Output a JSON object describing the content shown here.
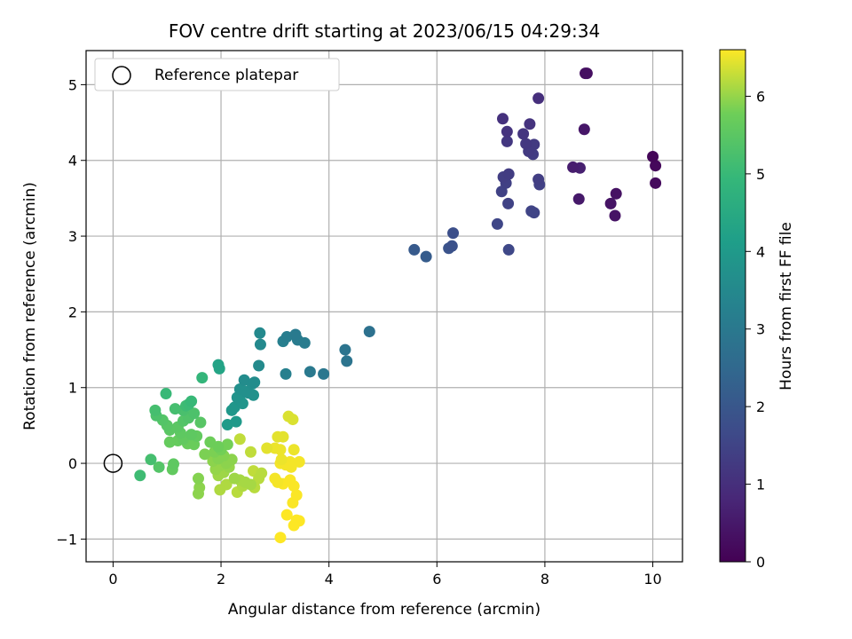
{
  "chart_data": {
    "type": "scatter",
    "title": "FOV centre drift starting at 2023/06/15 04:29:34",
    "xlabel": "Angular distance from reference (arcmin)",
    "ylabel": "Rotation from reference (arcmin)",
    "xlim": [
      -0.5,
      10.55
    ],
    "ylim": [
      -1.3,
      5.45
    ],
    "xticks": [
      0,
      2,
      4,
      6,
      8,
      10
    ],
    "yticks": [
      -1,
      0,
      1,
      2,
      3,
      4,
      5
    ],
    "grid": true,
    "legend": {
      "location": "upper-left",
      "entries": [
        "Reference platepar"
      ]
    },
    "reference_point": {
      "x": 0,
      "y": 0,
      "label": "Reference platepar"
    },
    "colorbar": {
      "label": "Hours from first FF file",
      "range": [
        0,
        6.6
      ],
      "ticks": [
        0,
        1,
        2,
        3,
        4,
        5,
        6
      ],
      "colormap": "viridis"
    },
    "points": [
      {
        "x": 10.0,
        "y": 4.05,
        "c": 0.1
      },
      {
        "x": 10.05,
        "y": 3.93,
        "c": 0.15
      },
      {
        "x": 10.05,
        "y": 3.7,
        "c": 0.2
      },
      {
        "x": 8.75,
        "y": 5.15,
        "c": 0.3
      },
      {
        "x": 8.78,
        "y": 5.15,
        "c": 0.32
      },
      {
        "x": 9.32,
        "y": 3.56,
        "c": 0.35
      },
      {
        "x": 9.3,
        "y": 3.27,
        "c": 0.38
      },
      {
        "x": 9.22,
        "y": 3.43,
        "c": 0.4
      },
      {
        "x": 8.73,
        "y": 4.41,
        "c": 0.45
      },
      {
        "x": 8.63,
        "y": 3.49,
        "c": 0.5
      },
      {
        "x": 8.52,
        "y": 3.91,
        "c": 0.6
      },
      {
        "x": 8.65,
        "y": 3.9,
        "c": 0.65
      },
      {
        "x": 7.88,
        "y": 4.82,
        "c": 1.0
      },
      {
        "x": 7.22,
        "y": 4.55,
        "c": 1.05
      },
      {
        "x": 7.72,
        "y": 4.48,
        "c": 1.1
      },
      {
        "x": 7.3,
        "y": 4.38,
        "c": 1.1
      },
      {
        "x": 7.6,
        "y": 4.35,
        "c": 1.15
      },
      {
        "x": 7.3,
        "y": 4.25,
        "c": 1.2
      },
      {
        "x": 7.65,
        "y": 4.22,
        "c": 1.2
      },
      {
        "x": 7.8,
        "y": 4.21,
        "c": 1.25
      },
      {
        "x": 7.7,
        "y": 4.12,
        "c": 1.25
      },
      {
        "x": 7.78,
        "y": 4.08,
        "c": 1.3
      },
      {
        "x": 7.33,
        "y": 3.82,
        "c": 1.3
      },
      {
        "x": 7.23,
        "y": 3.78,
        "c": 1.35
      },
      {
        "x": 7.88,
        "y": 3.75,
        "c": 1.35
      },
      {
        "x": 7.28,
        "y": 3.7,
        "c": 1.4
      },
      {
        "x": 7.9,
        "y": 3.68,
        "c": 1.4
      },
      {
        "x": 7.2,
        "y": 3.59,
        "c": 1.45
      },
      {
        "x": 7.32,
        "y": 3.43,
        "c": 1.45
      },
      {
        "x": 7.75,
        "y": 3.33,
        "c": 1.5
      },
      {
        "x": 7.8,
        "y": 3.31,
        "c": 1.5
      },
      {
        "x": 7.12,
        "y": 3.16,
        "c": 1.55
      },
      {
        "x": 6.3,
        "y": 3.04,
        "c": 1.8
      },
      {
        "x": 6.28,
        "y": 2.87,
        "c": 1.85
      },
      {
        "x": 6.22,
        "y": 2.84,
        "c": 1.9
      },
      {
        "x": 7.33,
        "y": 2.82,
        "c": 1.6
      },
      {
        "x": 5.58,
        "y": 2.82,
        "c": 2.1
      },
      {
        "x": 5.8,
        "y": 2.73,
        "c": 2.15
      },
      {
        "x": 4.75,
        "y": 1.74,
        "c": 2.75
      },
      {
        "x": 4.3,
        "y": 1.5,
        "c": 2.85
      },
      {
        "x": 4.33,
        "y": 1.35,
        "c": 2.85
      },
      {
        "x": 3.9,
        "y": 1.18,
        "c": 2.95
      },
      {
        "x": 3.65,
        "y": 1.21,
        "c": 3.0
      },
      {
        "x": 3.38,
        "y": 1.7,
        "c": 3.05
      },
      {
        "x": 3.42,
        "y": 1.63,
        "c": 3.1
      },
      {
        "x": 3.55,
        "y": 1.59,
        "c": 3.1
      },
      {
        "x": 3.22,
        "y": 1.67,
        "c": 3.15
      },
      {
        "x": 3.15,
        "y": 1.61,
        "c": 3.2
      },
      {
        "x": 3.2,
        "y": 1.18,
        "c": 3.25
      },
      {
        "x": 2.72,
        "y": 1.72,
        "c": 3.5
      },
      {
        "x": 2.73,
        "y": 1.57,
        "c": 3.5
      },
      {
        "x": 2.7,
        "y": 1.29,
        "c": 3.55
      },
      {
        "x": 2.43,
        "y": 1.1,
        "c": 3.6
      },
      {
        "x": 2.62,
        "y": 1.07,
        "c": 3.6
      },
      {
        "x": 2.58,
        "y": 1.05,
        "c": 3.65
      },
      {
        "x": 2.35,
        "y": 0.98,
        "c": 3.7
      },
      {
        "x": 2.45,
        "y": 0.95,
        "c": 3.7
      },
      {
        "x": 2.5,
        "y": 0.93,
        "c": 3.7
      },
      {
        "x": 2.6,
        "y": 0.9,
        "c": 3.75
      },
      {
        "x": 2.3,
        "y": 0.87,
        "c": 3.8
      },
      {
        "x": 2.35,
        "y": 0.83,
        "c": 3.85
      },
      {
        "x": 2.4,
        "y": 0.79,
        "c": 3.85
      },
      {
        "x": 2.25,
        "y": 0.74,
        "c": 3.9
      },
      {
        "x": 2.2,
        "y": 0.7,
        "c": 3.95
      },
      {
        "x": 2.28,
        "y": 0.55,
        "c": 4.0
      },
      {
        "x": 2.12,
        "y": 0.51,
        "c": 4.05
      },
      {
        "x": 1.95,
        "y": 1.3,
        "c": 4.3
      },
      {
        "x": 1.97,
        "y": 1.25,
        "c": 4.35
      },
      {
        "x": 1.65,
        "y": 1.13,
        "c": 4.9
      },
      {
        "x": 0.98,
        "y": 0.92,
        "c": 5.0
      },
      {
        "x": 1.45,
        "y": 0.82,
        "c": 5.0
      },
      {
        "x": 1.4,
        "y": 0.78,
        "c": 5.05
      },
      {
        "x": 1.35,
        "y": 0.76,
        "c": 5.1
      },
      {
        "x": 1.15,
        "y": 0.72,
        "c": 5.2
      },
      {
        "x": 0.78,
        "y": 0.7,
        "c": 5.2
      },
      {
        "x": 1.3,
        "y": 0.7,
        "c": 5.25
      },
      {
        "x": 1.5,
        "y": 0.66,
        "c": 5.3
      },
      {
        "x": 0.8,
        "y": 0.63,
        "c": 5.3
      },
      {
        "x": 1.4,
        "y": 0.6,
        "c": 5.35
      },
      {
        "x": 0.92,
        "y": 0.57,
        "c": 5.4
      },
      {
        "x": 1.3,
        "y": 0.56,
        "c": 5.4
      },
      {
        "x": 1.62,
        "y": 0.54,
        "c": 5.45
      },
      {
        "x": 1.0,
        "y": 0.5,
        "c": 5.45
      },
      {
        "x": 1.2,
        "y": 0.48,
        "c": 5.5
      },
      {
        "x": 1.05,
        "y": 0.44,
        "c": 5.5
      },
      {
        "x": 1.25,
        "y": 0.4,
        "c": 5.55
      },
      {
        "x": 1.45,
        "y": 0.38,
        "c": 5.55
      },
      {
        "x": 1.55,
        "y": 0.36,
        "c": 5.6
      },
      {
        "x": 1.3,
        "y": 0.32,
        "c": 5.6
      },
      {
        "x": 1.2,
        "y": 0.3,
        "c": 5.65
      },
      {
        "x": 1.05,
        "y": 0.28,
        "c": 5.65
      },
      {
        "x": 1.38,
        "y": 0.26,
        "c": 5.7
      },
      {
        "x": 1.5,
        "y": 0.25,
        "c": 5.7
      },
      {
        "x": 1.8,
        "y": 0.28,
        "c": 5.75
      },
      {
        "x": 1.95,
        "y": 0.22,
        "c": 5.75
      },
      {
        "x": 2.12,
        "y": 0.25,
        "c": 5.8
      },
      {
        "x": 2.0,
        "y": 0.18,
        "c": 5.8
      },
      {
        "x": 1.88,
        "y": 0.15,
        "c": 5.85
      },
      {
        "x": 1.7,
        "y": 0.12,
        "c": 5.85
      },
      {
        "x": 2.05,
        "y": 0.1,
        "c": 5.9
      },
      {
        "x": 1.95,
        "y": 0.06,
        "c": 5.9
      },
      {
        "x": 2.2,
        "y": 0.05,
        "c": 5.95
      },
      {
        "x": 1.85,
        "y": 0.03,
        "c": 5.95
      },
      {
        "x": 2.1,
        "y": 0.0,
        "c": 5.95
      },
      {
        "x": 1.98,
        "y": -0.03,
        "c": 6.0
      },
      {
        "x": 2.15,
        "y": -0.05,
        "c": 6.0
      },
      {
        "x": 1.9,
        "y": -0.08,
        "c": 6.0
      },
      {
        "x": 2.05,
        "y": -0.12,
        "c": 6.05
      },
      {
        "x": 1.95,
        "y": -0.16,
        "c": 6.05
      },
      {
        "x": 2.25,
        "y": -0.2,
        "c": 6.05
      },
      {
        "x": 2.35,
        "y": -0.22,
        "c": 6.1
      },
      {
        "x": 2.45,
        "y": -0.25,
        "c": 6.1
      },
      {
        "x": 2.55,
        "y": -0.28,
        "c": 6.1
      },
      {
        "x": 2.4,
        "y": -0.3,
        "c": 6.15
      },
      {
        "x": 2.1,
        "y": -0.28,
        "c": 6.15
      },
      {
        "x": 1.98,
        "y": -0.35,
        "c": 6.15
      },
      {
        "x": 2.3,
        "y": -0.38,
        "c": 6.2
      },
      {
        "x": 2.62,
        "y": -0.32,
        "c": 6.2
      },
      {
        "x": 2.7,
        "y": -0.2,
        "c": 6.2
      },
      {
        "x": 2.75,
        "y": -0.13,
        "c": 6.2
      },
      {
        "x": 2.6,
        "y": -0.1,
        "c": 6.25
      },
      {
        "x": 2.55,
        "y": 0.15,
        "c": 6.25
      },
      {
        "x": 2.35,
        "y": 0.32,
        "c": 6.25
      },
      {
        "x": 1.58,
        "y": -0.2,
        "c": 5.9
      },
      {
        "x": 1.6,
        "y": -0.32,
        "c": 5.95
      },
      {
        "x": 1.58,
        "y": -0.4,
        "c": 5.95
      },
      {
        "x": 1.1,
        "y": -0.08,
        "c": 5.6
      },
      {
        "x": 1.12,
        "y": -0.01,
        "c": 5.55
      },
      {
        "x": 0.85,
        "y": -0.05,
        "c": 5.4
      },
      {
        "x": 0.7,
        "y": 0.05,
        "c": 5.2
      },
      {
        "x": 0.5,
        "y": -0.16,
        "c": 5.1
      },
      {
        "x": 3.25,
        "y": 0.62,
        "c": 6.4
      },
      {
        "x": 3.33,
        "y": 0.58,
        "c": 6.4
      },
      {
        "x": 3.05,
        "y": 0.35,
        "c": 6.45
      },
      {
        "x": 3.15,
        "y": 0.35,
        "c": 6.45
      },
      {
        "x": 2.85,
        "y": 0.2,
        "c": 6.45
      },
      {
        "x": 3.0,
        "y": 0.2,
        "c": 6.5
      },
      {
        "x": 3.1,
        "y": 0.18,
        "c": 6.5
      },
      {
        "x": 3.35,
        "y": 0.18,
        "c": 6.5
      },
      {
        "x": 3.12,
        "y": 0.05,
        "c": 6.5
      },
      {
        "x": 3.28,
        "y": 0.02,
        "c": 6.55
      },
      {
        "x": 3.45,
        "y": 0.02,
        "c": 6.55
      },
      {
        "x": 3.1,
        "y": 0.0,
        "c": 6.55
      },
      {
        "x": 3.2,
        "y": -0.02,
        "c": 6.55
      },
      {
        "x": 3.3,
        "y": -0.05,
        "c": 6.55
      },
      {
        "x": 3.0,
        "y": -0.2,
        "c": 6.55
      },
      {
        "x": 3.05,
        "y": -0.25,
        "c": 6.55
      },
      {
        "x": 3.15,
        "y": -0.27,
        "c": 6.58
      },
      {
        "x": 3.28,
        "y": -0.22,
        "c": 6.58
      },
      {
        "x": 3.35,
        "y": -0.3,
        "c": 6.58
      },
      {
        "x": 3.4,
        "y": -0.42,
        "c": 6.58
      },
      {
        "x": 3.33,
        "y": -0.52,
        "c": 6.58
      },
      {
        "x": 3.22,
        "y": -0.68,
        "c": 6.6
      },
      {
        "x": 3.4,
        "y": -0.75,
        "c": 6.6
      },
      {
        "x": 3.45,
        "y": -0.76,
        "c": 6.6
      },
      {
        "x": 3.35,
        "y": -0.82,
        "c": 6.6
      },
      {
        "x": 3.1,
        "y": -0.98,
        "c": 6.6
      }
    ]
  }
}
